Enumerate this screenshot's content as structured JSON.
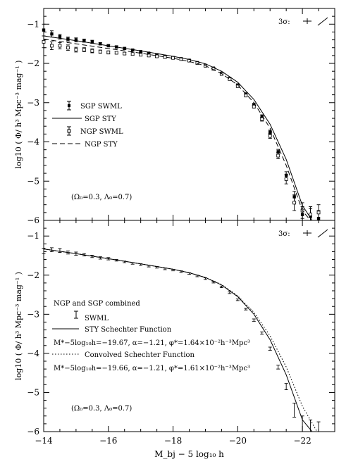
{
  "chart_data": [
    {
      "type": "line",
      "panel": "top",
      "xlim": [
        -14,
        -23
      ],
      "ylim": [
        -6,
        -0.6
      ],
      "ylabel": "log10 ( Φ/ h³ Mpc⁻³ mag⁻¹ )",
      "x_ticks": [
        "-14",
        "-16",
        "-18",
        "-20",
        "-22"
      ],
      "y_ticks": [
        "-1",
        "-2",
        "-3",
        "-4",
        "-5",
        "-6"
      ],
      "error_key_text": "3σ:",
      "annotation": "(Ω₀=0.3, Λ₀=0.7)",
      "legend": [
        {
          "label": "SGP SWML",
          "style": "filled-point-errorbar"
        },
        {
          "label": "SGP STY",
          "style": "solid"
        },
        {
          "label": "NGP SWML",
          "style": "open-point-errorbar"
        },
        {
          "label": "NGP STY",
          "style": "dashed"
        }
      ],
      "series": [
        {
          "name": "SGP SWML",
          "marker": "filled",
          "x": [
            -14.0,
            -14.25,
            -14.5,
            -14.75,
            -15.0,
            -15.25,
            -15.5,
            -15.75,
            -16.0,
            -16.25,
            -16.5,
            -16.75,
            -17.0,
            -17.25,
            -17.5,
            -17.75,
            -18.0,
            -18.25,
            -18.5,
            -18.75,
            -19.0,
            -19.25,
            -19.5,
            -19.75,
            -20.0,
            -20.25,
            -20.5,
            -20.75,
            -21.0,
            -21.25,
            -21.5,
            -21.75,
            -22.0,
            -22.25,
            -22.5
          ],
          "y": [
            -1.15,
            -1.25,
            -1.32,
            -1.38,
            -1.4,
            -1.42,
            -1.45,
            -1.5,
            -1.55,
            -1.58,
            -1.62,
            -1.66,
            -1.7,
            -1.74,
            -1.78,
            -1.82,
            -1.85,
            -1.88,
            -1.92,
            -1.98,
            -2.05,
            -2.12,
            -2.25,
            -2.38,
            -2.55,
            -2.78,
            -3.05,
            -3.35,
            -3.75,
            -4.25,
            -4.85,
            -5.4,
            -5.85,
            -5.9,
            -5.95
          ],
          "err": [
            0.15,
            0.08,
            0.06,
            0.05,
            0.05,
            0.04,
            0.04,
            0.03,
            0.03,
            0.03,
            0.03,
            0.02,
            0.02,
            0.02,
            0.02,
            0.02,
            0.02,
            0.02,
            0.02,
            0.02,
            0.02,
            0.02,
            0.02,
            0.02,
            0.02,
            0.03,
            0.03,
            0.04,
            0.05,
            0.06,
            0.09,
            0.14,
            0.2,
            0.2,
            0.2
          ]
        },
        {
          "name": "NGP SWML",
          "marker": "open",
          "x": [
            -14.0,
            -14.25,
            -14.5,
            -14.75,
            -15.0,
            -15.25,
            -15.5,
            -15.75,
            -16.0,
            -16.25,
            -16.5,
            -16.75,
            -17.0,
            -17.25,
            -17.5,
            -17.75,
            -18.0,
            -18.25,
            -18.5,
            -18.75,
            -19.0,
            -19.25,
            -19.5,
            -19.75,
            -20.0,
            -20.25,
            -20.5,
            -20.75,
            -21.0,
            -21.25,
            -21.5,
            -21.75,
            -22.0,
            -22.25,
            -22.5
          ],
          "y": [
            -1.45,
            -1.55,
            -1.55,
            -1.6,
            -1.65,
            -1.65,
            -1.68,
            -1.7,
            -1.72,
            -1.73,
            -1.75,
            -1.76,
            -1.78,
            -1.8,
            -1.82,
            -1.84,
            -1.86,
            -1.89,
            -1.93,
            -1.99,
            -2.06,
            -2.14,
            -2.27,
            -2.4,
            -2.58,
            -2.82,
            -3.1,
            -3.42,
            -3.85,
            -4.35,
            -4.95,
            -5.55,
            -5.75,
            -5.85,
            -5.8
          ],
          "err": [
            0.15,
            0.1,
            0.08,
            0.07,
            0.06,
            0.05,
            0.05,
            0.04,
            0.04,
            0.03,
            0.03,
            0.03,
            0.03,
            0.03,
            0.03,
            0.03,
            0.03,
            0.03,
            0.03,
            0.03,
            0.03,
            0.03,
            0.03,
            0.03,
            0.03,
            0.03,
            0.04,
            0.05,
            0.06,
            0.08,
            0.12,
            0.2,
            0.2,
            0.2,
            0.2
          ]
        },
        {
          "name": "SGP STY",
          "style": "solid",
          "x": [
            -14,
            -15,
            -16,
            -17,
            -18,
            -18.5,
            -19,
            -19.5,
            -20,
            -20.5,
            -21,
            -21.5,
            -22,
            -22.3
          ],
          "y": [
            -1.3,
            -1.42,
            -1.55,
            -1.68,
            -1.82,
            -1.9,
            -2.01,
            -2.2,
            -2.48,
            -2.92,
            -3.55,
            -4.45,
            -5.62,
            -6.0
          ]
        },
        {
          "name": "NGP STY",
          "style": "dashed",
          "x": [
            -14,
            -15,
            -16,
            -17,
            -18,
            -18.5,
            -19,
            -19.5,
            -20,
            -20.5,
            -21,
            -21.5,
            -22,
            -22.25
          ],
          "y": [
            -1.38,
            -1.5,
            -1.62,
            -1.74,
            -1.87,
            -1.95,
            -2.06,
            -2.26,
            -2.55,
            -3.0,
            -3.65,
            -4.6,
            -5.75,
            -6.0
          ]
        }
      ]
    },
    {
      "type": "line",
      "panel": "bottom",
      "xlim": [
        -14,
        -23
      ],
      "ylim": [
        -6,
        -0.6
      ],
      "xlabel": "M_bj − 5 log₁₀ h",
      "ylabel": "log10 ( Φ/ h³ Mpc⁻³ mag⁻¹ )",
      "x_ticks": [
        "-14",
        "-16",
        "-18",
        "-20",
        "-22"
      ],
      "y_ticks": [
        "-1",
        "-2",
        "-3",
        "-4",
        "-5",
        "-6"
      ],
      "error_key_text": "3σ:",
      "annotation": "(Ω₀=0.3, Λ₀=0.7)",
      "legend_title": "NGP and SGP combined",
      "legend": [
        {
          "label": "SWML",
          "style": "errorbar"
        },
        {
          "label": "STY Schechter Function",
          "style": "solid"
        },
        {
          "label": "M*−5log₁₀h=−19.67,  α=−1.21,  φ*=1.64×10⁻²h⁻³Mpc³",
          "style": "params"
        },
        {
          "label": "Convolved Schechter Function",
          "style": "dotted"
        },
        {
          "label": "M*−5log₁₀h=−19.66,  α=−1.21,  φ*=1.61×10⁻²h⁻³Mpc³",
          "style": "params"
        }
      ],
      "series": [
        {
          "name": "SWML",
          "marker": "errorbar",
          "x": [
            -14.0,
            -14.25,
            -14.5,
            -14.75,
            -15.0,
            -15.25,
            -15.5,
            -15.75,
            -16.0,
            -16.25,
            -16.5,
            -16.75,
            -17.0,
            -17.25,
            -17.5,
            -17.75,
            -18.0,
            -18.25,
            -18.5,
            -18.75,
            -19.0,
            -19.25,
            -19.5,
            -19.75,
            -20.0,
            -20.25,
            -20.5,
            -20.75,
            -21.0,
            -21.25,
            -21.5,
            -21.75,
            -22.0,
            -22.25,
            -22.5
          ],
          "y": [
            -1.38,
            -1.35,
            -1.37,
            -1.42,
            -1.45,
            -1.48,
            -1.52,
            -1.56,
            -1.58,
            -1.62,
            -1.66,
            -1.7,
            -1.73,
            -1.77,
            -1.8,
            -1.84,
            -1.87,
            -1.91,
            -1.96,
            -2.02,
            -2.09,
            -2.18,
            -2.3,
            -2.45,
            -2.63,
            -2.87,
            -3.15,
            -3.48,
            -3.88,
            -4.35,
            -4.85,
            -5.45,
            -5.85,
            -5.95,
            -6.0
          ],
          "err": [
            0.07,
            0.05,
            0.05,
            0.04,
            0.04,
            0.03,
            0.03,
            0.03,
            0.03,
            0.02,
            0.02,
            0.02,
            0.02,
            0.02,
            0.02,
            0.02,
            0.02,
            0.02,
            0.02,
            0.02,
            0.02,
            0.02,
            0.02,
            0.02,
            0.02,
            0.02,
            0.03,
            0.03,
            0.04,
            0.05,
            0.08,
            0.18,
            0.25,
            0.25,
            0.25
          ]
        },
        {
          "name": "STY Schechter Function",
          "style": "solid",
          "x": [
            -14,
            -15,
            -16,
            -17,
            -18,
            -18.5,
            -19,
            -19.5,
            -20,
            -20.5,
            -21,
            -21.5,
            -22,
            -22.3
          ],
          "y": [
            -1.33,
            -1.45,
            -1.58,
            -1.71,
            -1.85,
            -1.94,
            -2.06,
            -2.25,
            -2.55,
            -3.0,
            -3.65,
            -4.55,
            -5.7,
            -6.0
          ]
        },
        {
          "name": "Convolved Schechter Function",
          "style": "dotted",
          "x": [
            -14,
            -15,
            -16,
            -17,
            -18,
            -18.5,
            -19,
            -19.5,
            -20,
            -20.5,
            -21,
            -21.5,
            -22,
            -22.45
          ],
          "y": [
            -1.33,
            -1.45,
            -1.58,
            -1.71,
            -1.85,
            -1.94,
            -2.06,
            -2.24,
            -2.53,
            -2.95,
            -3.55,
            -4.35,
            -5.35,
            -6.0
          ]
        }
      ]
    }
  ]
}
